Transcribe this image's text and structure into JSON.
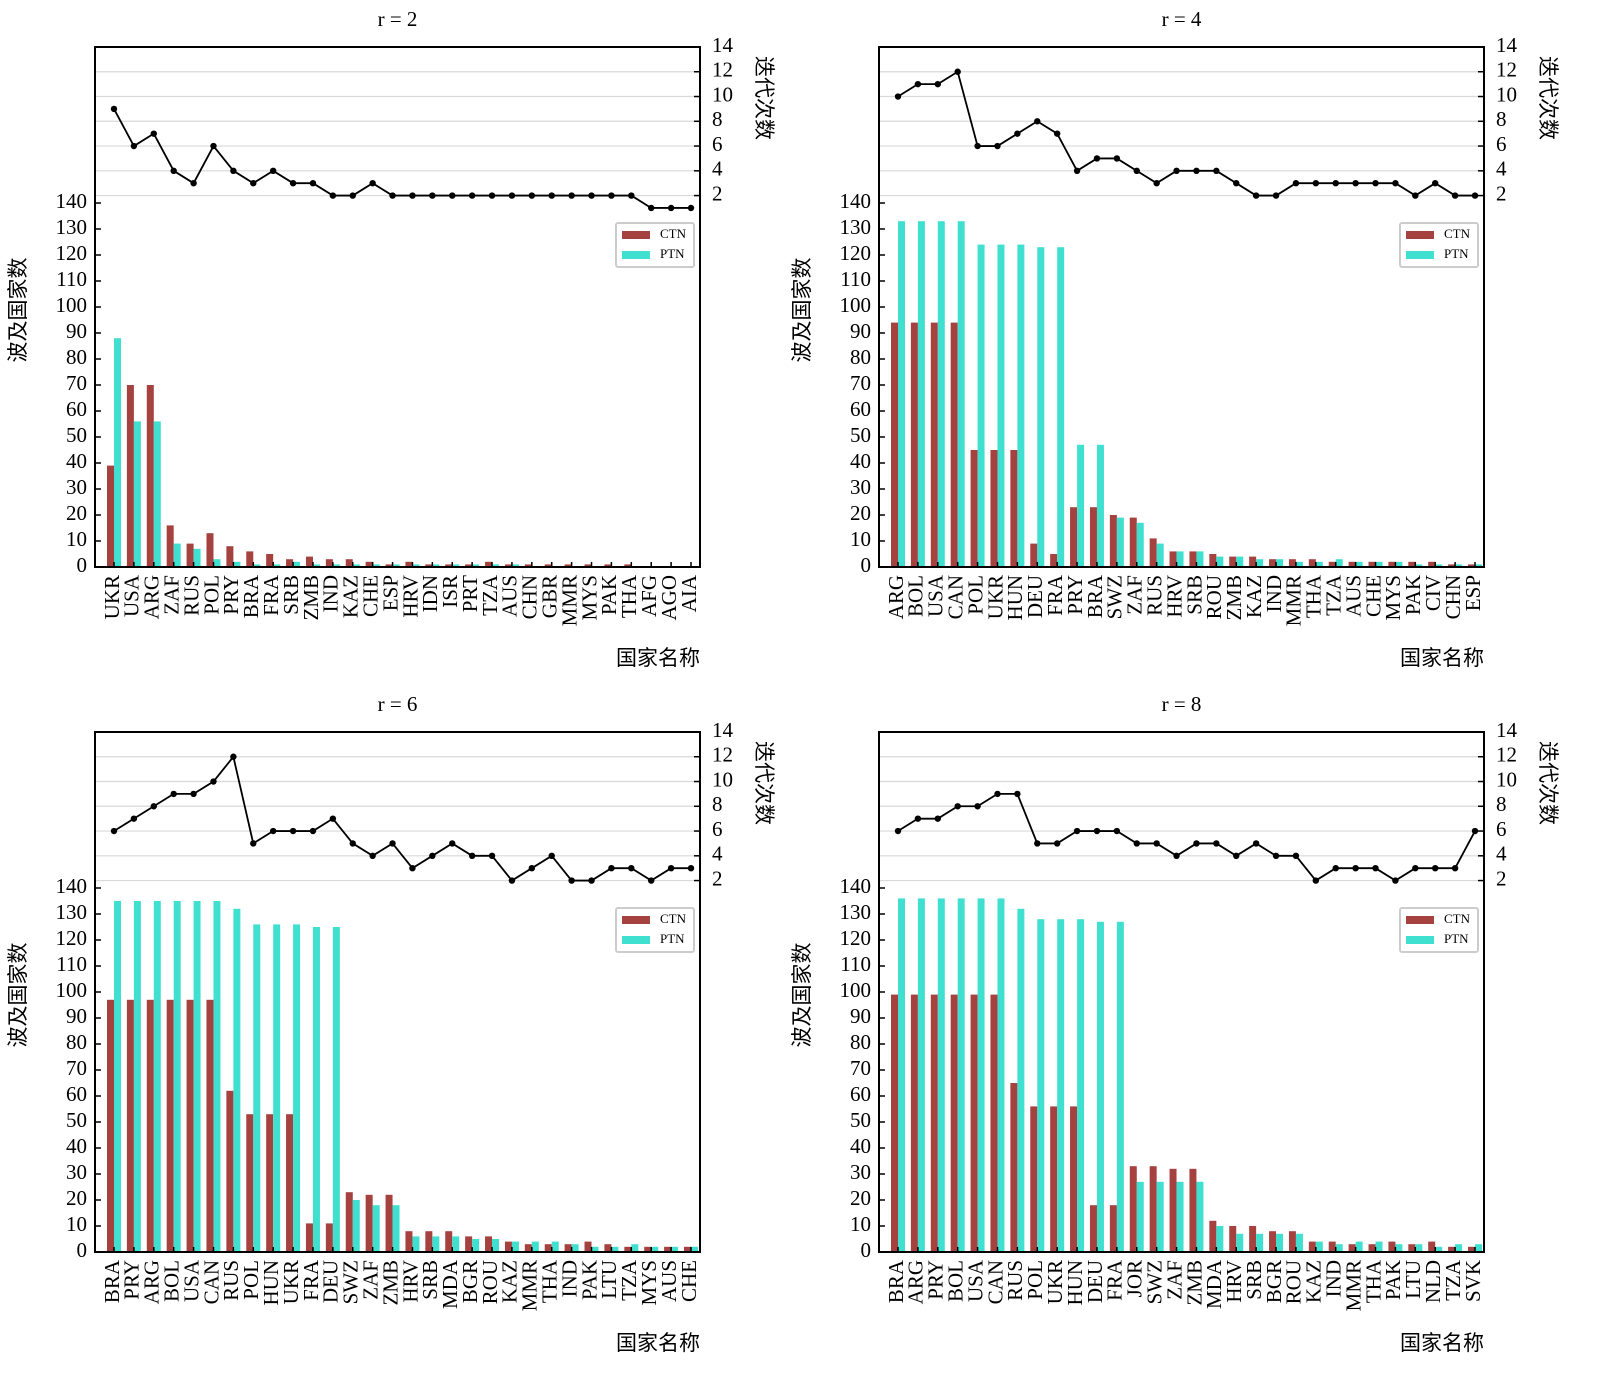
{
  "chart_data": [
    {
      "type": "combo",
      "title": "r = 2",
      "xlabel": "国家名称",
      "ylabel": "波及国家数",
      "y2label": "迭代次数",
      "categories": [
        "UKR",
        "USA",
        "ARG",
        "ZAF",
        "RUS",
        "POL",
        "PRY",
        "BRA",
        "FRA",
        "SRB",
        "ZMB",
        "IND",
        "KAZ",
        "CHE",
        "ESP",
        "HRV",
        "IDN",
        "ISR",
        "PRT",
        "TZA",
        "AUS",
        "CHN",
        "GBR",
        "MMR",
        "MYS",
        "PAK",
        "THA",
        "AFG",
        "AGO",
        "AIA"
      ],
      "series": [
        {
          "name": "CTN",
          "kind": "bar",
          "color": "#a5413e",
          "values": [
            39,
            70,
            70,
            16,
            9,
            13,
            8,
            6,
            5,
            3,
            4,
            3,
            3,
            2,
            1,
            2,
            1,
            1,
            1,
            2,
            1,
            1,
            1,
            1,
            1,
            1,
            1,
            0,
            0,
            0
          ]
        },
        {
          "name": "PTN",
          "kind": "bar",
          "color": "#40e0d0",
          "values": [
            88,
            56,
            56,
            9,
            7,
            3,
            2,
            1,
            1,
            2,
            1,
            1,
            1,
            1,
            1,
            1,
            1,
            1,
            1,
            1,
            1,
            0,
            0,
            0,
            0,
            0,
            0,
            0,
            0,
            0
          ]
        },
        {
          "kind": "line",
          "axis": "y2",
          "color": "#000000",
          "values": [
            9,
            6,
            7,
            4,
            3,
            6,
            4,
            3,
            4,
            3,
            3,
            2,
            2,
            3,
            2,
            2,
            2,
            2,
            2,
            2,
            2,
            2,
            2,
            2,
            2,
            2,
            2,
            1,
            1,
            1
          ]
        }
      ],
      "ylim": [
        0,
        200
      ],
      "yticks": [
        0,
        10,
        20,
        30,
        40,
        50,
        60,
        70,
        80,
        90,
        100,
        110,
        120,
        130,
        140
      ],
      "y2lim": [
        -28,
        14
      ],
      "y2ticks": [
        2,
        4,
        6,
        8,
        10,
        12,
        14
      ],
      "grid": true,
      "legend": "right"
    },
    {
      "type": "combo",
      "title": "r = 4",
      "xlabel": "国家名称",
      "ylabel": "波及国家数",
      "y2label": "迭代次数",
      "categories": [
        "ARG",
        "BOL",
        "USA",
        "CAN",
        "POL",
        "UKR",
        "HUN",
        "DEU",
        "FRA",
        "PRY",
        "BRA",
        "SWZ",
        "ZAF",
        "RUS",
        "HRV",
        "SRB",
        "ROU",
        "ZMB",
        "KAZ",
        "IND",
        "MMR",
        "THA",
        "TZA",
        "AUS",
        "CHE",
        "MYS",
        "PAK",
        "CIV",
        "CHN",
        "ESP"
      ],
      "series": [
        {
          "name": "CTN",
          "kind": "bar",
          "color": "#a5413e",
          "values": [
            94,
            94,
            94,
            94,
            45,
            45,
            45,
            9,
            5,
            23,
            23,
            20,
            19,
            11,
            6,
            6,
            5,
            4,
            4,
            3,
            3,
            3,
            2,
            2,
            2,
            2,
            2,
            2,
            1,
            1
          ]
        },
        {
          "name": "PTN",
          "kind": "bar",
          "color": "#40e0d0",
          "values": [
            133,
            133,
            133,
            133,
            124,
            124,
            124,
            123,
            123,
            47,
            47,
            19,
            17,
            9,
            6,
            6,
            4,
            4,
            3,
            3,
            2,
            2,
            3,
            2,
            2,
            2,
            1,
            1,
            1,
            1
          ]
        },
        {
          "kind": "line",
          "axis": "y2",
          "color": "#000000",
          "values": [
            10,
            11,
            11,
            12,
            6,
            6,
            7,
            8,
            7,
            4,
            5,
            5,
            4,
            3,
            4,
            4,
            4,
            3,
            2,
            2,
            3,
            3,
            3,
            3,
            3,
            3,
            2,
            3,
            2,
            2
          ]
        }
      ],
      "ylim": [
        0,
        200
      ],
      "yticks": [
        0,
        10,
        20,
        30,
        40,
        50,
        60,
        70,
        80,
        90,
        100,
        110,
        120,
        130,
        140
      ],
      "y2lim": [
        -28,
        14
      ],
      "y2ticks": [
        2,
        4,
        6,
        8,
        10,
        12,
        14
      ],
      "grid": true,
      "legend": "right"
    },
    {
      "type": "combo",
      "title": "r = 6",
      "xlabel": "国家名称",
      "ylabel": "波及国家数",
      "y2label": "迭代次数",
      "categories": [
        "BRA",
        "PRY",
        "ARG",
        "BOL",
        "USA",
        "CAN",
        "RUS",
        "POL",
        "HUN",
        "UKR",
        "FRA",
        "DEU",
        "SWZ",
        "ZAF",
        "ZMB",
        "HRV",
        "SRB",
        "MDA",
        "BGR",
        "ROU",
        "KAZ",
        "MMR",
        "THA",
        "IND",
        "PAK",
        "LTU",
        "TZA",
        "MYS",
        "AUS",
        "CHE"
      ],
      "series": [
        {
          "name": "CTN",
          "kind": "bar",
          "color": "#a5413e",
          "values": [
            97,
            97,
            97,
            97,
            97,
            97,
            62,
            53,
            53,
            53,
            11,
            11,
            23,
            22,
            22,
            8,
            8,
            8,
            6,
            6,
            4,
            3,
            3,
            3,
            4,
            3,
            2,
            2,
            2,
            2
          ]
        },
        {
          "name": "PTN",
          "kind": "bar",
          "color": "#40e0d0",
          "values": [
            135,
            135,
            135,
            135,
            135,
            135,
            132,
            126,
            126,
            126,
            125,
            125,
            20,
            18,
            18,
            6,
            6,
            6,
            5,
            5,
            4,
            4,
            4,
            3,
            2,
            2,
            3,
            2,
            2,
            2
          ]
        },
        {
          "kind": "line",
          "axis": "y2",
          "color": "#000000",
          "values": [
            6,
            7,
            8,
            9,
            9,
            10,
            12,
            5,
            6,
            6,
            6,
            7,
            5,
            4,
            5,
            3,
            4,
            5,
            4,
            4,
            2,
            3,
            4,
            2,
            2,
            3,
            3,
            2,
            3,
            3
          ]
        }
      ],
      "ylim": [
        0,
        200
      ],
      "yticks": [
        0,
        10,
        20,
        30,
        40,
        50,
        60,
        70,
        80,
        90,
        100,
        110,
        120,
        130,
        140
      ],
      "y2lim": [
        -28,
        14
      ],
      "y2ticks": [
        2,
        4,
        6,
        8,
        10,
        12,
        14
      ],
      "grid": true,
      "legend": "right"
    },
    {
      "type": "combo",
      "title": "r = 8",
      "xlabel": "国家名称",
      "ylabel": "波及国家数",
      "y2label": "迭代次数",
      "categories": [
        "BRA",
        "ARG",
        "PRY",
        "BOL",
        "USA",
        "CAN",
        "RUS",
        "POL",
        "UKR",
        "HUN",
        "DEU",
        "FRA",
        "JOR",
        "SWZ",
        "ZAF",
        "ZMB",
        "MDA",
        "HRV",
        "SRB",
        "BGR",
        "ROU",
        "KAZ",
        "IND",
        "MMR",
        "THA",
        "PAK",
        "LTU",
        "NLD",
        "TZA",
        "SVK"
      ],
      "series": [
        {
          "name": "CTN",
          "kind": "bar",
          "color": "#a5413e",
          "values": [
            99,
            99,
            99,
            99,
            99,
            99,
            65,
            56,
            56,
            56,
            18,
            18,
            33,
            33,
            32,
            32,
            12,
            10,
            10,
            8,
            8,
            4,
            4,
            3,
            3,
            4,
            3,
            4,
            2,
            2
          ]
        },
        {
          "name": "PTN",
          "kind": "bar",
          "color": "#40e0d0",
          "values": [
            136,
            136,
            136,
            136,
            136,
            136,
            132,
            128,
            128,
            128,
            127,
            127,
            27,
            27,
            27,
            27,
            10,
            7,
            7,
            7,
            7,
            4,
            3,
            4,
            4,
            3,
            3,
            2,
            3,
            3
          ]
        },
        {
          "kind": "line",
          "axis": "y2",
          "color": "#000000",
          "values": [
            6,
            7,
            7,
            8,
            8,
            9,
            9,
            5,
            5,
            6,
            6,
            6,
            5,
            5,
            4,
            5,
            5,
            4,
            5,
            4,
            4,
            2,
            3,
            3,
            3,
            2,
            3,
            3,
            3,
            6
          ]
        }
      ],
      "ylim": [
        0,
        200
      ],
      "yticks": [
        0,
        10,
        20,
        30,
        40,
        50,
        60,
        70,
        80,
        90,
        100,
        110,
        120,
        130,
        140
      ],
      "y2lim": [
        -28,
        14
      ],
      "y2ticks": [
        2,
        4,
        6,
        8,
        10,
        12,
        14
      ],
      "grid": true,
      "legend": "right"
    }
  ]
}
